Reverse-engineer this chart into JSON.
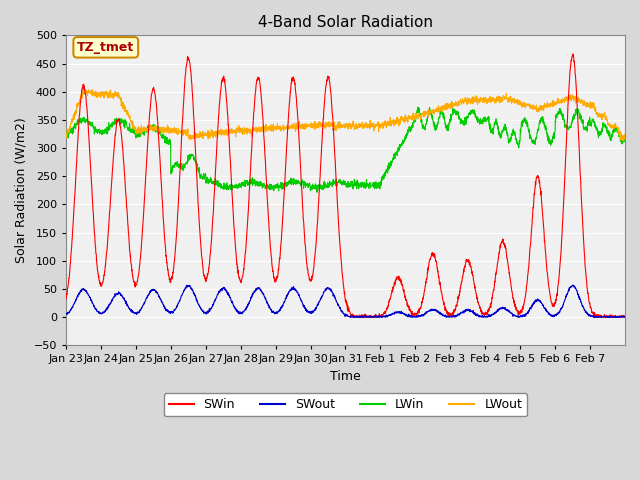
{
  "title": "4-Band Solar Radiation",
  "ylabel": "Solar Radiation (W/m2)",
  "xlabel": "Time",
  "annotation": "TZ_tmet",
  "ylim": [
    -50,
    500
  ],
  "yticks": [
    -50,
    0,
    50,
    100,
    150,
    200,
    250,
    300,
    350,
    400,
    450,
    500
  ],
  "xtick_labels": [
    "Jan 23",
    "Jan 24",
    "Jan 25",
    "Jan 26",
    "Jan 27",
    "Jan 28",
    "Jan 29",
    "Jan 30",
    "Jan 31",
    "Feb 1",
    "Feb 2",
    "Feb 3",
    "Feb 4",
    "Feb 5",
    "Feb 6",
    "Feb 7"
  ],
  "colors": {
    "SWin": "#ff0000",
    "SWout": "#0000cc",
    "LWin": "#00cc00",
    "LWout": "#ffaa00"
  },
  "legend_labels": [
    "SWin",
    "SWout",
    "LWin",
    "LWout"
  ],
  "background_color": "#d8d8d8",
  "plot_bg_color": "#f0f0f0",
  "grid_color": "#ffffff",
  "annotation_bg": "#ffffcc",
  "annotation_border": "#cc8800"
}
